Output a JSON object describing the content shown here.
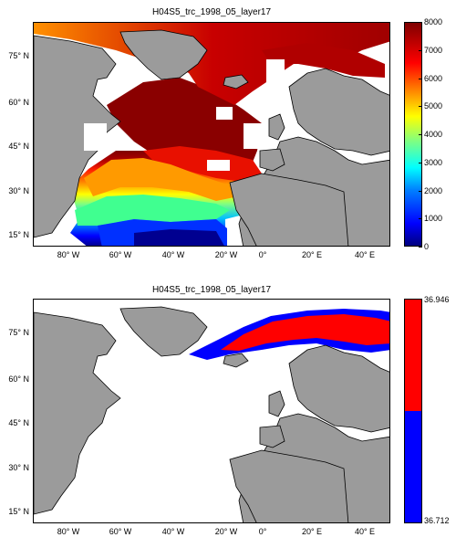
{
  "colors": {
    "land": "#9b9b9b",
    "ocean_empty": "#ffffff",
    "high": "#ff0000",
    "low": "#0000ff"
  },
  "panels": [
    {
      "title": "H04S5_trc_1998_05_layer17",
      "lat_labels": [
        "75° N",
        "60° N",
        "45° N",
        "30° N",
        "15° N"
      ],
      "lon_labels": [
        "80° W",
        "60° W",
        "40° W",
        "20° W",
        "0°",
        "20° E",
        "40° E"
      ],
      "colorbar": {
        "scale": "jet",
        "min": 0,
        "max": 8000,
        "ticks": [
          "8000",
          "7000",
          "6000",
          "5000",
          "4000",
          "3000",
          "2000",
          "1000",
          "0"
        ]
      }
    },
    {
      "title": "H04S5_trc_1998_05_layer17",
      "lat_labels": [
        "75° N",
        "60° N",
        "45° N",
        "30° N",
        "15° N"
      ],
      "lon_labels": [
        "80° W",
        "60° W",
        "40° W",
        "20° W",
        "0°",
        "20° E",
        "40° E"
      ],
      "colorbar": {
        "scale": "two-class",
        "min": 36.712,
        "max": 36.946,
        "ticks": [
          "36.946",
          "36.712"
        ]
      }
    }
  ]
}
